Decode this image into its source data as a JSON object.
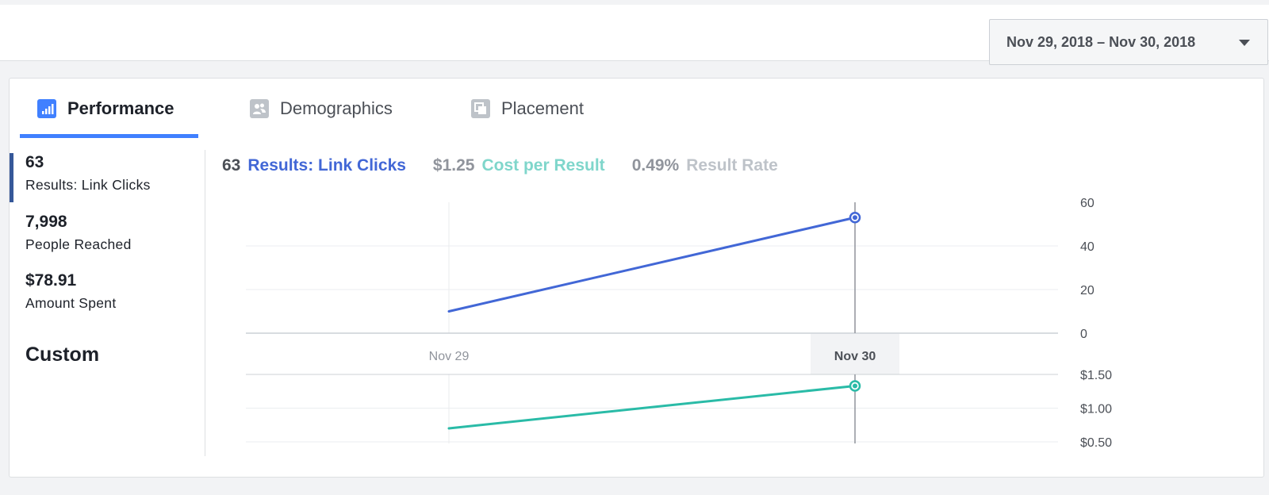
{
  "date_range": {
    "label": "Nov 29, 2018 – Nov 30, 2018"
  },
  "tabs": [
    {
      "label": "Performance",
      "icon": "bar-chart-icon",
      "active": true
    },
    {
      "label": "Demographics",
      "icon": "people-icon",
      "active": false
    },
    {
      "label": "Placement",
      "icon": "placement-icon",
      "active": false
    }
  ],
  "metrics": [
    {
      "value": "63",
      "label": "Results: Link Clicks",
      "selected": true
    },
    {
      "value": "7,998",
      "label": "People Reached",
      "selected": false
    },
    {
      "value": "$78.91",
      "label": "Amount Spent",
      "selected": false
    }
  ],
  "custom_label": "Custom",
  "summary": {
    "results_value": "63",
    "results_label": "Results: Link Clicks",
    "cost_value": "$1.25",
    "cost_label": "Cost per Result",
    "rate_value": "0.49%",
    "rate_label": "Result Rate"
  },
  "colors": {
    "results": "#4267d6",
    "cost": "#2abba7",
    "cost_label": "#7fd6cb",
    "rate": "#bec3c9",
    "value_gray": "#90949c",
    "accent": "#4080ff"
  },
  "chart_data": [
    {
      "type": "line",
      "x": [
        "Nov 29",
        "Nov 30"
      ],
      "series": [
        {
          "name": "Results: Link Clicks",
          "values": [
            10,
            53
          ]
        }
      ],
      "ylim": [
        0,
        60
      ],
      "yticks": [
        "60",
        "40",
        "20",
        "0"
      ],
      "ytick_values": [
        60,
        40,
        20,
        0
      ],
      "highlighted_x": "Nov 30",
      "grid": true
    },
    {
      "type": "line",
      "x": [
        "Nov 29",
        "Nov 30"
      ],
      "series": [
        {
          "name": "Cost per Result",
          "values": [
            0.7,
            1.33
          ]
        }
      ],
      "ylim": [
        0.5,
        1.5
      ],
      "yticks": [
        "$1.50",
        "$1.00",
        "$0.50"
      ],
      "ytick_values": [
        1.5,
        1.0,
        0.5
      ],
      "highlighted_x": "Nov 30",
      "grid": true
    }
  ]
}
